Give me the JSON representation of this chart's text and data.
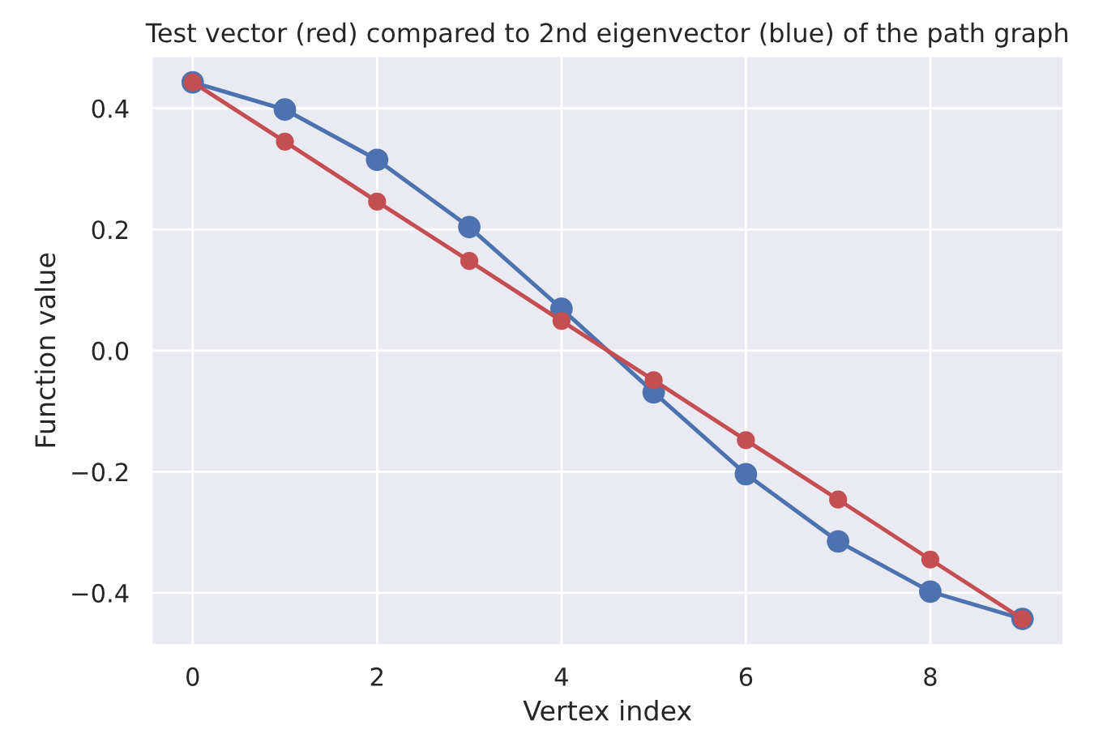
{
  "chart_data": {
    "type": "line",
    "title": "Test vector (red) compared to 2nd eigenvector (blue) of the path graph",
    "xlabel": "Vertex index",
    "ylabel": "Function value",
    "x": [
      0,
      1,
      2,
      3,
      4,
      5,
      6,
      7,
      8,
      9
    ],
    "series": [
      {
        "color": "#4c72b0",
        "values": [
          0.443,
          0.398,
          0.315,
          0.204,
          0.069,
          -0.069,
          -0.204,
          -0.315,
          -0.398,
          -0.443
        ]
      },
      {
        "color": "#c44e52",
        "values": [
          0.443,
          0.345,
          0.246,
          0.148,
          0.049,
          -0.049,
          -0.148,
          -0.246,
          -0.345,
          -0.443
        ]
      }
    ],
    "xlim": [
      -0.45,
      9.45
    ],
    "xticks": [
      0,
      2,
      4,
      6,
      8
    ],
    "ylim": [
      -0.487,
      0.487
    ],
    "yticks": [
      {
        "value": -0.4,
        "label": "−0.4"
      },
      {
        "value": -0.2,
        "label": "−0.2"
      },
      {
        "value": 0.0,
        "label": "0.0"
      },
      {
        "value": 0.2,
        "label": "0.2"
      },
      {
        "value": 0.4,
        "label": "0.4"
      }
    ],
    "grid": true,
    "marker": "circle",
    "line_style": "solid"
  }
}
